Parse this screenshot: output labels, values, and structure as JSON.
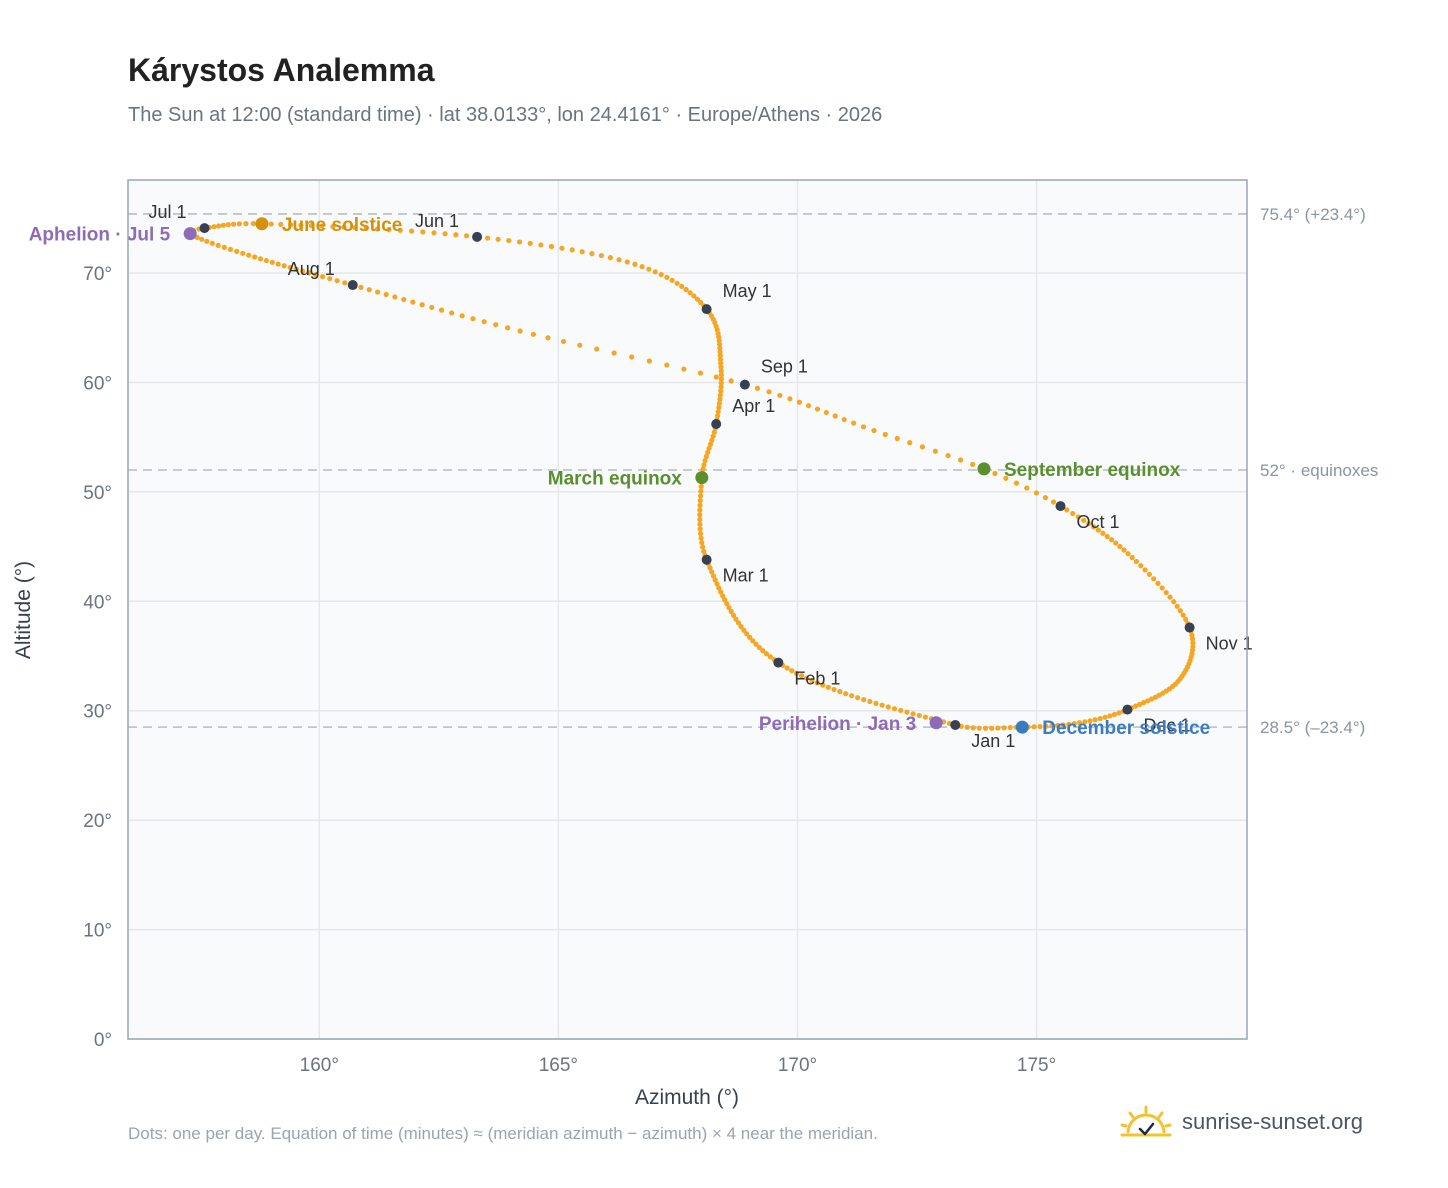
{
  "header": {
    "title": "Kárystos Analemma",
    "subtitle": "The Sun at 12:00 (standard time) · lat 38.0133°, lon 24.4161° · Europe/Athens · 2026"
  },
  "footer": {
    "note": "Dots: one per day. Equation of time (minutes) ≈ (meridian azimuth − azimuth) × 4 near the meridian.",
    "brand": "sunrise-sunset.org",
    "icon": "sun-logo-icon"
  },
  "colors": {
    "curve": "#f5a623",
    "month_dot": "#374151",
    "solstice_june": "#d4910a",
    "equinox": "#5a8f2e",
    "solstice_december": "#3b7bc0",
    "apsis": "#8e6bb8",
    "grid": "#e5e7eb",
    "reference_line": "#c0c6ce",
    "plot_background": "#f8fafc",
    "frame": "#9aa5b4"
  },
  "chart_data": {
    "type": "scatter",
    "title": "Kárystos Analemma",
    "xlabel": "Azimuth (°)",
    "ylabel": "Altitude (°)",
    "xlim": [
      156,
      179.4
    ],
    "ylim": [
      0,
      78.5
    ],
    "xticks": [
      {
        "value": 160,
        "label": "160°"
      },
      {
        "value": 165,
        "label": "165°"
      },
      {
        "value": 170,
        "label": "170°"
      },
      {
        "value": 175,
        "label": "175°"
      }
    ],
    "yticks": [
      {
        "value": 0,
        "label": "0°"
      },
      {
        "value": 10,
        "label": "10°"
      },
      {
        "value": 20,
        "label": "20°"
      },
      {
        "value": 30,
        "label": "30°"
      },
      {
        "value": 40,
        "label": "40°"
      },
      {
        "value": 50,
        "label": "50°"
      },
      {
        "value": 60,
        "label": "60°"
      },
      {
        "value": 70,
        "label": "70°"
      }
    ],
    "grid": true,
    "reference_lines": [
      {
        "y": 75.4,
        "label": "75.4° (+23.4°)"
      },
      {
        "y": 52.0,
        "label": "52° · equinoxes"
      },
      {
        "y": 28.5,
        "label": "28.5° (–23.4°)"
      }
    ],
    "series": [
      {
        "points": [
          {
            "doy": 1,
            "az": 173.3,
            "alt": 28.7
          },
          {
            "doy": 32,
            "az": 169.6,
            "alt": 34.4
          },
          {
            "doy": 60,
            "az": 168.1,
            "alt": 43.8
          },
          {
            "doy": 78,
            "az": 168.0,
            "alt": 51.3
          },
          {
            "doy": 91,
            "az": 168.3,
            "alt": 56.2
          },
          {
            "doy": 105,
            "az": 168.4,
            "alt": 61.4
          },
          {
            "doy": 121,
            "az": 168.1,
            "alt": 66.7
          },
          {
            "doy": 136,
            "az": 166.6,
            "alt": 70.8
          },
          {
            "doy": 152,
            "az": 163.3,
            "alt": 73.3
          },
          {
            "doy": 172,
            "az": 158.8,
            "alt": 74.5
          },
          {
            "doy": 182,
            "az": 157.6,
            "alt": 74.1
          },
          {
            "doy": 186,
            "az": 157.3,
            "alt": 73.6
          },
          {
            "doy": 196,
            "az": 158.4,
            "alt": 71.8
          },
          {
            "doy": 213,
            "az": 160.7,
            "alt": 68.9
          },
          {
            "doy": 230,
            "az": 164.2,
            "alt": 64.7
          },
          {
            "doy": 244,
            "az": 168.9,
            "alt": 59.8
          },
          {
            "doy": 257,
            "az": 171.6,
            "alt": 55.6
          },
          {
            "doy": 266,
            "az": 173.9,
            "alt": 52.1
          },
          {
            "doy": 274,
            "az": 175.5,
            "alt": 48.7
          },
          {
            "doy": 289,
            "az": 177.0,
            "alt": 44.0
          },
          {
            "doy": 305,
            "az": 178.2,
            "alt": 37.6
          },
          {
            "doy": 320,
            "az": 178.0,
            "alt": 32.9
          },
          {
            "doy": 335,
            "az": 176.9,
            "alt": 30.1
          },
          {
            "doy": 345,
            "az": 175.9,
            "alt": 28.9
          },
          {
            "doy": 355,
            "az": 174.7,
            "alt": 28.5
          },
          {
            "doy": 366,
            "az": 173.3,
            "alt": 28.7
          }
        ]
      }
    ],
    "month_markers": [
      {
        "label": "Jan 1",
        "az": 173.3,
        "alt": 28.7,
        "pos": "below-right"
      },
      {
        "label": "Feb 1",
        "az": 169.6,
        "alt": 34.4,
        "pos": "below-right"
      },
      {
        "label": "Mar 1",
        "az": 168.1,
        "alt": 43.8,
        "pos": "below-right"
      },
      {
        "label": "Apr 1",
        "az": 168.3,
        "alt": 56.2,
        "pos": "above-right"
      },
      {
        "label": "May 1",
        "az": 168.1,
        "alt": 66.7,
        "pos": "above-right"
      },
      {
        "label": "Jun 1",
        "az": 163.3,
        "alt": 73.3,
        "pos": "above-left"
      },
      {
        "label": "Jul 1",
        "az": 157.6,
        "alt": 74.1,
        "pos": "above-left"
      },
      {
        "label": "Aug 1",
        "az": 160.7,
        "alt": 68.9,
        "pos": "above-left"
      },
      {
        "label": "Sep 1",
        "az": 168.9,
        "alt": 59.8,
        "pos": "above-right"
      },
      {
        "label": "Oct 1",
        "az": 175.5,
        "alt": 48.7,
        "pos": "below-right"
      },
      {
        "label": "Nov 1",
        "az": 178.2,
        "alt": 37.6,
        "pos": "below-right"
      },
      {
        "label": "Dec 1",
        "az": 176.9,
        "alt": 30.1,
        "pos": "below-right"
      }
    ],
    "events": [
      {
        "label": "June solstice",
        "az": 158.8,
        "alt": 74.5,
        "color": "#d4910a",
        "pos": "right"
      },
      {
        "label": "March equinox",
        "az": 168.0,
        "alt": 51.3,
        "color": "#5a8f2e",
        "pos": "left"
      },
      {
        "label": "September equinox",
        "az": 173.9,
        "alt": 52.1,
        "color": "#5a8f2e",
        "pos": "right"
      },
      {
        "label": "December solstice",
        "az": 174.7,
        "alt": 28.5,
        "color": "#3b7bc0",
        "pos": "right"
      },
      {
        "label": "Aphelion · Jul 5",
        "az": 157.3,
        "alt": 73.6,
        "color": "#8e6bb8",
        "pos": "left"
      },
      {
        "label": "Perihelion · Jan 3",
        "az": 172.9,
        "alt": 28.9,
        "color": "#8e6bb8",
        "pos": "left"
      }
    ]
  }
}
